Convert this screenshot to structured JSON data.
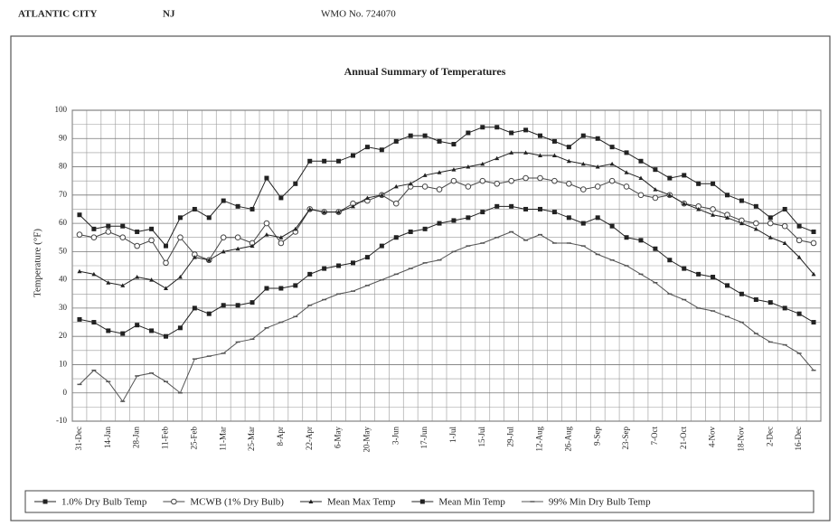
{
  "header": {
    "city": "ATLANTIC CITY",
    "state": "NJ",
    "station": "WMO No. 724070"
  },
  "chart_data": {
    "type": "line",
    "title": "Annual Summary of Temperatures",
    "y_label": "Temperature (°F)",
    "categories": [
      "31-Dec",
      null,
      "14-Jan",
      null,
      "28-Jan",
      null,
      "11-Feb",
      null,
      "25-Feb",
      null,
      "11-Mar",
      null,
      "25-Mar",
      null,
      "8-Apr",
      null,
      "22-Apr",
      null,
      "6-May",
      null,
      "20-May",
      null,
      "3-Jun",
      null,
      "17-Jun",
      null,
      "1-Jul",
      null,
      "15-Jul",
      null,
      "29-Jul",
      null,
      "12-Aug",
      null,
      "26-Aug",
      null,
      "9-Sep",
      null,
      "23-Sep",
      null,
      "7-Oct",
      null,
      "21-Oct",
      null,
      "4-Nov",
      null,
      "18-Nov",
      null,
      "2-Dec",
      null,
      "16-Dec",
      null
    ],
    "ylim": [
      -10,
      100
    ],
    "yticks": [
      -10,
      0,
      10,
      20,
      30,
      40,
      50,
      60,
      70,
      80,
      90,
      100
    ],
    "grid": true,
    "legend": "bottom",
    "series": [
      {
        "name": "1.0% Dry Bulb Temp",
        "color": "#222222",
        "marker": "square",
        "values": [
          63,
          58,
          59,
          59,
          57,
          58,
          52,
          62,
          65,
          62,
          68,
          66,
          65,
          76,
          69,
          74,
          82,
          82,
          82,
          84,
          87,
          86,
          89,
          91,
          91,
          89,
          88,
          92,
          94,
          94,
          92,
          93,
          91,
          89,
          87,
          91,
          90,
          87,
          85,
          82,
          79,
          76,
          77,
          74,
          74,
          70,
          68,
          66,
          62,
          65,
          59,
          57
        ]
      },
      {
        "name": "MCWB (1% Dry Bulb)",
        "color": "#444444",
        "marker": "circle-open",
        "values": [
          56,
          55,
          57,
          55,
          52,
          54,
          46,
          55,
          49,
          47,
          55,
          55,
          53,
          60,
          53,
          57,
          65,
          64,
          64,
          67,
          68,
          70,
          67,
          73,
          73,
          72,
          75,
          73,
          75,
          74,
          75,
          76,
          76,
          75,
          74,
          72,
          73,
          75,
          73,
          70,
          69,
          70,
          67,
          66,
          65,
          63,
          61,
          60,
          60,
          59,
          54,
          53
        ]
      },
      {
        "name": "Mean Max Temp",
        "color": "#222222",
        "marker": "triangle",
        "values": [
          43,
          42,
          39,
          38,
          41,
          40,
          37,
          41,
          48,
          47,
          50,
          51,
          52,
          56,
          55,
          58,
          65,
          64,
          64,
          66,
          69,
          70,
          73,
          74,
          77,
          78,
          79,
          80,
          81,
          83,
          85,
          85,
          84,
          84,
          82,
          81,
          80,
          81,
          78,
          76,
          72,
          70,
          67,
          65,
          63,
          62,
          60,
          58,
          55,
          53,
          48,
          42
        ]
      },
      {
        "name": "Mean Min Temp",
        "color": "#222222",
        "marker": "square",
        "values": [
          26,
          25,
          22,
          21,
          24,
          22,
          20,
          23,
          30,
          28,
          31,
          31,
          32,
          37,
          37,
          38,
          42,
          44,
          45,
          46,
          48,
          52,
          55,
          57,
          58,
          60,
          61,
          62,
          64,
          66,
          66,
          65,
          65,
          64,
          62,
          60,
          62,
          59,
          55,
          54,
          51,
          47,
          44,
          42,
          41,
          38,
          35,
          33,
          32,
          30,
          28,
          25
        ]
      },
      {
        "name": "99% Min Dry Bulb Temp",
        "color": "#555555",
        "marker": "dash",
        "values": [
          3,
          8,
          4,
          -3,
          6,
          7,
          4,
          0,
          12,
          13,
          14,
          18,
          19,
          23,
          25,
          27,
          31,
          33,
          35,
          36,
          38,
          40,
          42,
          44,
          46,
          47,
          50,
          52,
          53,
          55,
          57,
          54,
          56,
          53,
          53,
          52,
          49,
          47,
          45,
          42,
          39,
          35,
          33,
          30,
          29,
          27,
          25,
          21,
          18,
          17,
          14,
          8
        ]
      }
    ]
  }
}
